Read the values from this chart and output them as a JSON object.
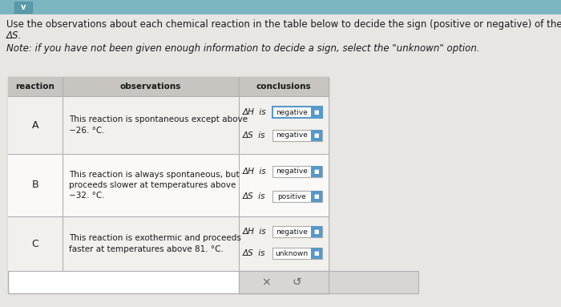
{
  "bg_color": "#e8e6e3",
  "top_bar_color": "#7ab5c0",
  "title_line1": "Use the observations about each chemical reaction in the table below to decide the sign (positive or negative) of the reaction enthalpy ΔH and r",
  "title_line2": "ΔS.",
  "note_line": "Note: if you have not been given enough information to decide a sign, select the \"unknown\" option.",
  "header_reaction": "reaction",
  "header_observations": "observations",
  "header_conclusions": "conclusions",
  "rows": [
    {
      "label": "A",
      "observation": [
        "This reaction is spontaneous except above",
        "−26. °C."
      ],
      "dh_value": "negative",
      "ds_value": "negative",
      "dh_selected": true
    },
    {
      "label": "B",
      "observation": [
        "This reaction is always spontaneous, but",
        "proceeds slower at temperatures above",
        "−32. °C."
      ],
      "dh_value": "negative",
      "ds_value": "positive",
      "dh_selected": false
    },
    {
      "label": "C",
      "observation": [
        "This reaction is exothermic and proceeds",
        "faster at temperatures above 81. °C."
      ],
      "dh_value": "negative",
      "ds_value": "unknown",
      "dh_selected": false
    }
  ],
  "text_color": "#1a1a1a",
  "table_border_color": "#b0b0b0",
  "header_bg": "#c8c5c0",
  "row_bg_odd": "#f2f0ed",
  "row_bg_even": "#faf9f8",
  "footer_bg": "#d8d6d2",
  "dropdown_border": "#aaaaaa",
  "dropdown_selected_border": "#5599cc",
  "dropdown_icon_color": "#5599cc"
}
